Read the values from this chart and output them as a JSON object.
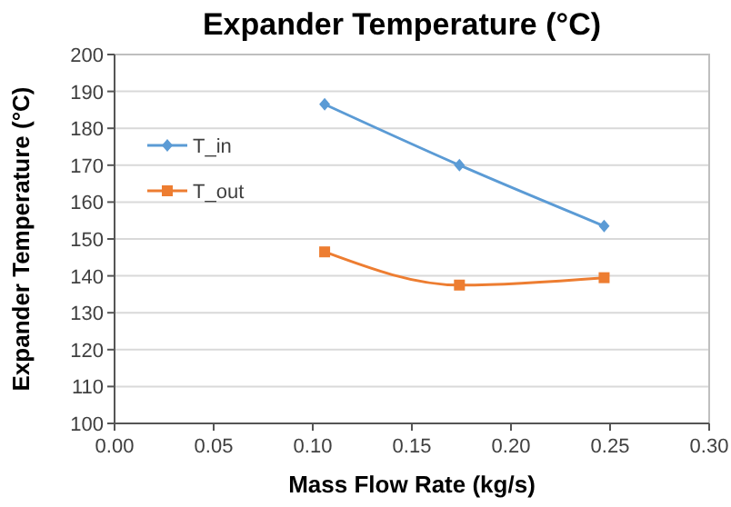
{
  "chart_data": {
    "type": "line",
    "title": "Expander Temperature (°C)",
    "xlabel": "Mass  Flow Rate (kg/s)",
    "ylabel": "Expander Temperature (°C)",
    "xlim": [
      0,
      0.3
    ],
    "xticks": [
      {
        "value": 0,
        "label": "0.00"
      },
      {
        "value": 0.05,
        "label": "0.05"
      },
      {
        "value": 0.1,
        "label": "0.10"
      },
      {
        "value": 0.15,
        "label": "0.15"
      },
      {
        "value": 0.2,
        "label": "0.20"
      },
      {
        "value": 0.25,
        "label": "0.25"
      },
      {
        "value": 0.3,
        "label": "0.30"
      }
    ],
    "ylim": [
      100,
      200
    ],
    "yticks": [
      100,
      110,
      120,
      130,
      140,
      150,
      160,
      170,
      180,
      190,
      200
    ],
    "grid": "y",
    "legend": "top left",
    "x": [
      0.106,
      0.174,
      0.247
    ],
    "series": [
      {
        "name": "T_in",
        "color": "#5b9bd5",
        "values": [
          186.5,
          170,
          153.5
        ],
        "marker": "diamond"
      },
      {
        "name": "T_out",
        "color": "#ed7d31",
        "values": [
          146.5,
          137.5,
          139.5
        ],
        "marker": "square"
      }
    ]
  }
}
